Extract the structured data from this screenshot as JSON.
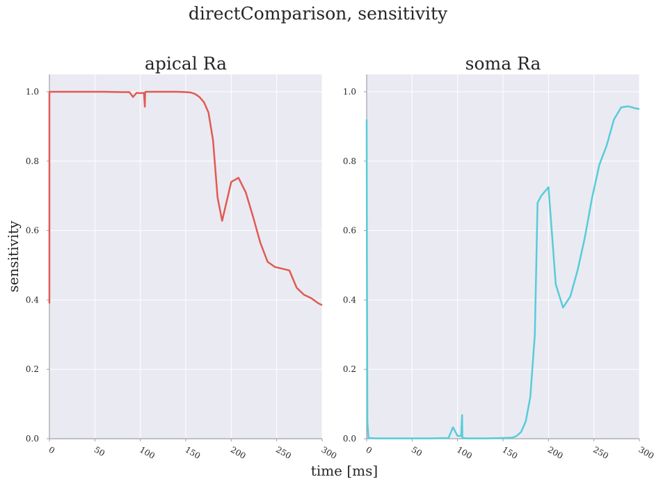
{
  "figure": {
    "suptitle": "directComparison, sensitivity",
    "xlabel": "time [ms]",
    "ylabel": "sensitivity",
    "background": "#EAEAF2",
    "grid_color": "#FFFFFF"
  },
  "chart_data": [
    {
      "type": "line",
      "title": "apical Ra",
      "xlim": [
        0,
        300
      ],
      "ylim": [
        0,
        1.05
      ],
      "xticks": [
        0,
        50,
        100,
        150,
        200,
        250,
        300
      ],
      "yticks": [
        "0.0",
        "0.2",
        "0.4",
        "0.6",
        "0.8",
        "1.0"
      ],
      "grid": true,
      "color": "#E05A52",
      "x": [
        0,
        0,
        0.5,
        2,
        10,
        20,
        40,
        60,
        80,
        88,
        92,
        96,
        100,
        104,
        105,
        105.3,
        105.6,
        106,
        107,
        110,
        120,
        130,
        140,
        150,
        155,
        160,
        165,
        170,
        175,
        180,
        185,
        190,
        200,
        208,
        216,
        224,
        232,
        240,
        248,
        256,
        264,
        272,
        280,
        288,
        296,
        300
      ],
      "y": [
        0.39,
        0.998,
        1.0,
        1.0,
        1.0,
        1.0,
        1.0,
        1.0,
        0.999,
        0.999,
        0.985,
        0.997,
        0.996,
        0.997,
        0.957,
        0.998,
        0.999,
        1.0,
        1.0,
        1.0,
        1.0,
        1.0,
        1.0,
        0.999,
        0.998,
        0.994,
        0.985,
        0.97,
        0.94,
        0.86,
        0.695,
        0.628,
        0.74,
        0.752,
        0.71,
        0.64,
        0.565,
        0.51,
        0.495,
        0.49,
        0.485,
        0.435,
        0.415,
        0.405,
        0.39,
        0.385
      ]
    },
    {
      "type": "line",
      "title": "soma Ra",
      "xlim": [
        0,
        300
      ],
      "ylim": [
        0,
        1.05
      ],
      "xticks": [
        0,
        50,
        100,
        150,
        200,
        250,
        300
      ],
      "yticks": [
        "0.0",
        "0.2",
        "0.4",
        "0.6",
        "0.8",
        "1.0"
      ],
      "grid": true,
      "color": "#56CCD9",
      "x": [
        0,
        0.3,
        0.8,
        2,
        10,
        30,
        50,
        70,
        90,
        95,
        100,
        104,
        105,
        105.3,
        106,
        110,
        130,
        150,
        160,
        165,
        170,
        175,
        180,
        185,
        188,
        192,
        200,
        208,
        216,
        224,
        232,
        240,
        248,
        256,
        264,
        272,
        280,
        288,
        296,
        300
      ],
      "y": [
        0.92,
        0.5,
        0.05,
        0.002,
        0.001,
        0.001,
        0.001,
        0.001,
        0.002,
        0.033,
        0.008,
        0.008,
        0.068,
        0.002,
        0.002,
        0.001,
        0.001,
        0.002,
        0.003,
        0.008,
        0.02,
        0.05,
        0.12,
        0.3,
        0.68,
        0.7,
        0.725,
        0.445,
        0.378,
        0.41,
        0.485,
        0.58,
        0.695,
        0.79,
        0.845,
        0.92,
        0.955,
        0.958,
        0.952,
        0.95
      ]
    }
  ]
}
